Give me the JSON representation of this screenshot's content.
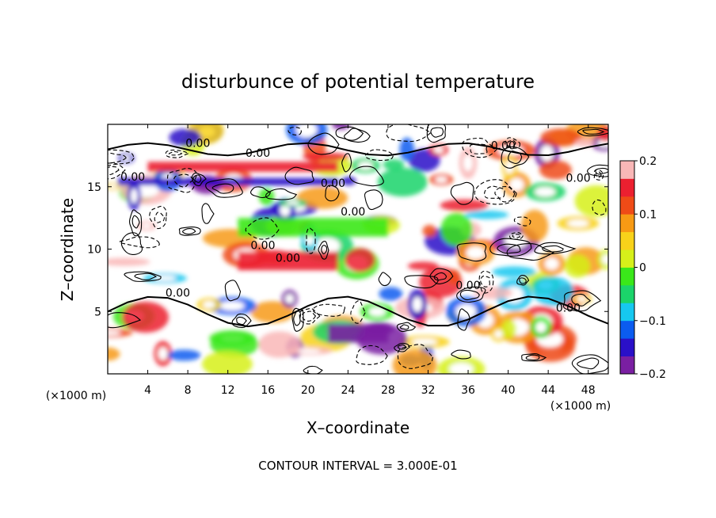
{
  "chart_data": {
    "type": "heatmap",
    "title": "disturbunce of potential temperature",
    "xlabel": "X–coordinate",
    "ylabel": "Z–coordinate",
    "x_unit_label": "(×1000 m)",
    "y_unit_label": "(×1000 m)",
    "xlim": [
      0,
      50
    ],
    "ylim": [
      0,
      20
    ],
    "x_ticks": [
      4,
      8,
      12,
      16,
      20,
      24,
      28,
      32,
      36,
      40,
      44,
      48
    ],
    "y_ticks": [
      5,
      10,
      15
    ],
    "colorbar": {
      "range": [
        -0.2,
        0.2
      ],
      "ticks": [
        {
          "value": 0.2,
          "label": "0.2"
        },
        {
          "value": 0.1,
          "label": "0.1"
        },
        {
          "value": 0.0,
          "label": "0"
        },
        {
          "value": -0.1,
          "label": "−0.1"
        },
        {
          "value": -0.2,
          "label": "−0.2"
        }
      ],
      "colors": [
        "#7a1fa2",
        "#2a10c8",
        "#0b5cf0",
        "#16c8f0",
        "#1bd46a",
        "#3ae81a",
        "#d6f01a",
        "#f8d21a",
        "#f79a14",
        "#ef4b17",
        "#ec2030",
        "#f9b7b7"
      ]
    },
    "contour_interval_label": "CONTOUR INTERVAL = 3.000E-01",
    "contour_labels": [
      "0.00",
      "0.00",
      "0.00",
      "0.00",
      "0.00",
      "0.00",
      "0.00",
      "0.00",
      "0.00",
      "0.00",
      "0.00",
      "0.00"
    ],
    "contour_label_positions": [
      {
        "x": 9,
        "z": 18.2
      },
      {
        "x": 15,
        "z": 17.4
      },
      {
        "x": 39.5,
        "z": 18.0
      },
      {
        "x": 2.5,
        "z": 15.5
      },
      {
        "x": 22.5,
        "z": 15.0
      },
      {
        "x": 24.5,
        "z": 12.7
      },
      {
        "x": 15.5,
        "z": 10.0
      },
      {
        "x": 18,
        "z": 9.0
      },
      {
        "x": 7,
        "z": 6.2
      },
      {
        "x": 36,
        "z": 6.8
      },
      {
        "x": 46,
        "z": 5.0
      },
      {
        "x": 47,
        "z": 15.4
      }
    ]
  }
}
